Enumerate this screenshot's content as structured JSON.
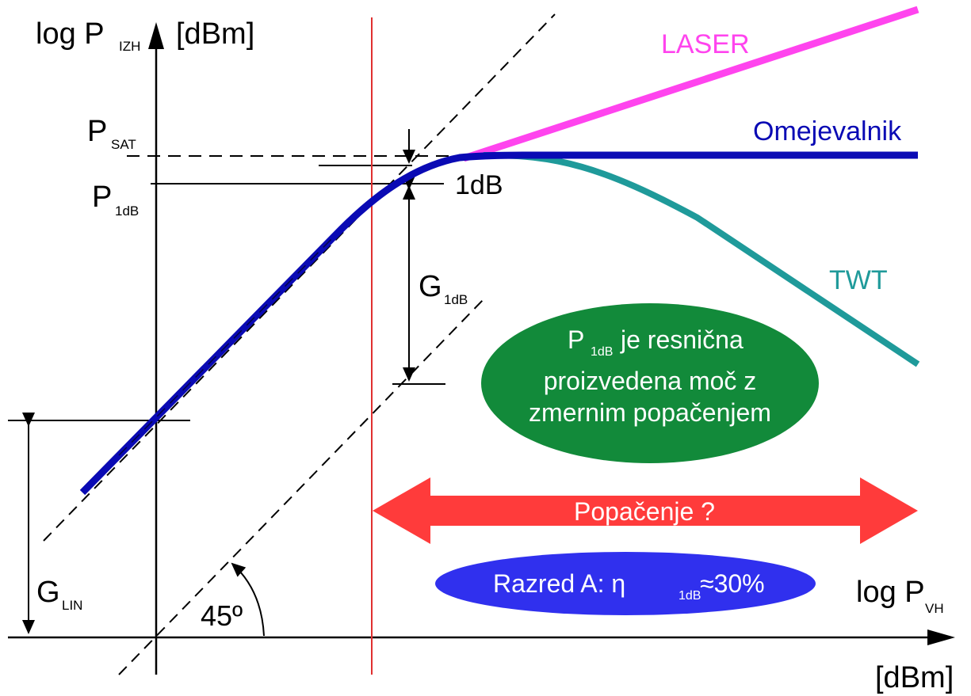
{
  "y_axis": {
    "label": "log P",
    "sub": "IZH",
    "unit": "[dBm]"
  },
  "x_axis": {
    "label": "log P",
    "sub": "VH",
    "unit": "[dBm]"
  },
  "levels": {
    "psat": {
      "label": "P",
      "sub": "SAT"
    },
    "p1db": {
      "label": "P",
      "sub": "1dB"
    },
    "one_db": "1dB"
  },
  "gains": {
    "g1db": {
      "label": "G",
      "sub": "1dB"
    },
    "glin": {
      "label": "G",
      "sub": "LIN"
    }
  },
  "angle": "45º",
  "curves": {
    "laser": {
      "label": "LASER",
      "color": "#ff44ee"
    },
    "limiter": {
      "label": "Omejevalnik",
      "color": "#0a0ab4"
    },
    "twt": {
      "label": "TWT",
      "color": "#1f9a9a"
    }
  },
  "note": {
    "pre": "P",
    "sub": "1dB",
    "post": " je resnična",
    "line2": "proizvedena moč z",
    "line3": "zmernim popačenjem",
    "color": "#128a3a"
  },
  "distortion": {
    "label": "Popačenje ?",
    "color": "#ff3b3b"
  },
  "classA": {
    "pre": "Razred A: η",
    "sub": "1dB",
    "post": "≈30%",
    "color": "#3030ee"
  },
  "marker_color": "#e03030"
}
